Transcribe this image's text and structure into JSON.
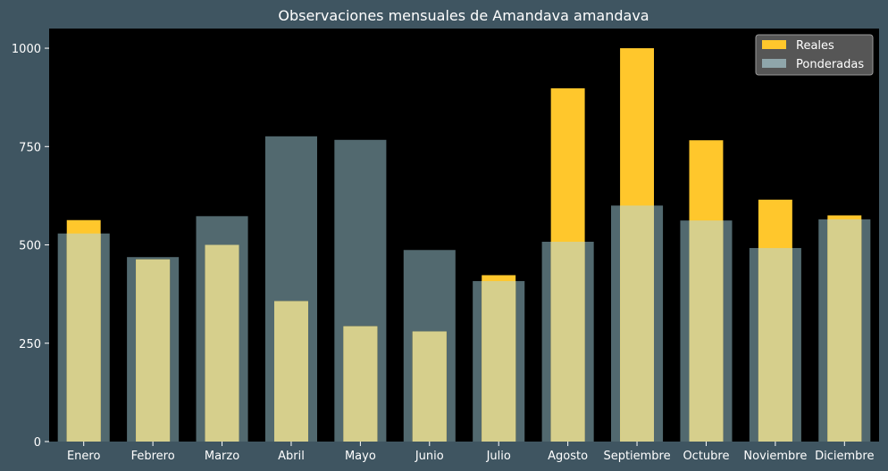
{
  "chart_data": {
    "type": "bar",
    "title": "Observaciones mensuales de Amandava amandava",
    "xlabel": "",
    "ylabel": "",
    "categories": [
      "Enero",
      "Febrero",
      "Marzo",
      "Abril",
      "Mayo",
      "Junio",
      "Julio",
      "Agosto",
      "Septiembre",
      "Octubre",
      "Noviembre",
      "Diciembre"
    ],
    "series": [
      {
        "name": "Reales",
        "color": "#ffc72c",
        "values": [
          563,
          463,
          500,
          357,
          293,
          280,
          423,
          898,
          1000,
          766,
          615,
          575
        ]
      },
      {
        "name": "Ponderadas",
        "color": "#8fa6ab",
        "values": [
          529,
          469,
          573,
          776,
          767,
          487,
          408,
          508,
          600,
          562,
          492,
          565
        ]
      }
    ],
    "ylim": [
      0,
      1050
    ],
    "yticks": [
      0,
      250,
      500,
      750,
      1000
    ],
    "grid": false,
    "legend_position": "top-right",
    "background_color": "#000000",
    "figure_color": "#3f5561",
    "overlay": true
  }
}
